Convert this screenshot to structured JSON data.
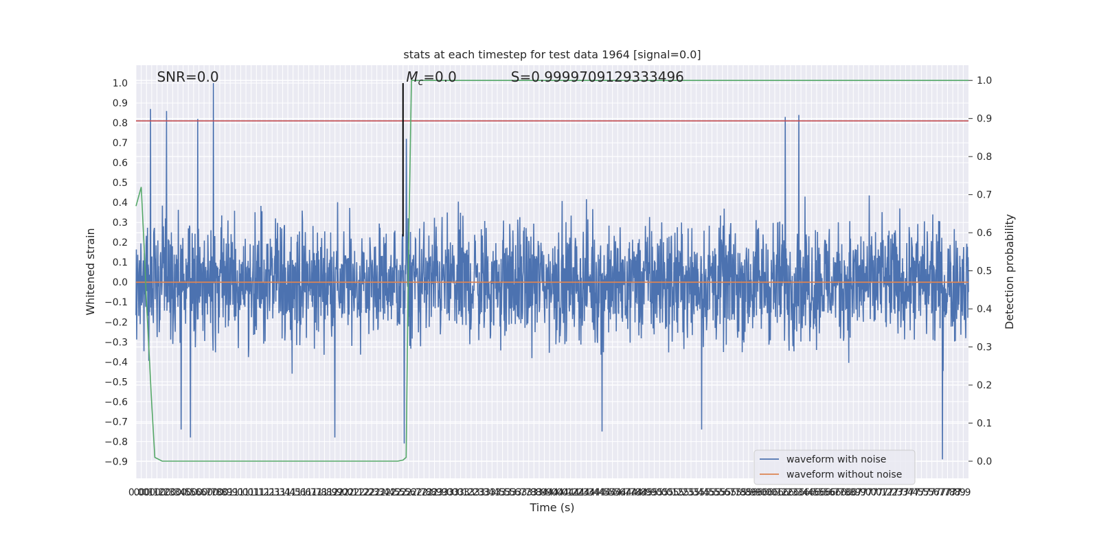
{
  "chart_data": {
    "type": "line",
    "title": "stats at each timestep for test data 1964 [signal=0.0]",
    "xlabel": "Time (s)",
    "ylabel": "Whitened strain",
    "y2label": "Detection probability",
    "xlim": [
      0.0,
      7.95
    ],
    "ylim": [
      -0.985,
      1.09
    ],
    "y2lim": [
      -0.045,
      1.04
    ],
    "x_ticks": [
      0.0,
      0.05,
      0.1,
      0.15,
      0.2,
      0.25,
      0.3,
      0.35,
      0.4,
      0.45,
      0.5,
      0.55,
      0.6,
      0.65,
      0.7,
      0.75,
      0.8,
      0.85,
      0.9,
      0.95,
      1.0,
      1.05,
      1.1,
      1.15,
      1.2,
      1.25,
      1.3,
      1.35,
      1.4,
      1.45,
      1.5,
      1.55,
      1.6,
      1.65,
      1.7,
      1.75,
      1.8,
      1.85,
      1.9,
      1.95,
      2.0,
      2.05,
      2.1,
      2.15,
      2.2,
      2.25,
      2.3,
      2.35,
      2.4,
      2.45,
      2.5,
      2.55,
      2.6,
      2.65,
      2.7,
      2.75,
      2.8,
      2.85,
      2.9,
      2.95,
      3.0,
      3.05,
      3.1,
      3.15,
      3.2,
      3.25,
      3.3,
      3.35,
      3.4,
      3.45,
      3.5,
      3.55,
      3.6,
      3.65,
      3.7,
      3.75,
      3.8,
      3.85,
      3.9,
      3.95,
      4.0,
      4.05,
      4.1,
      4.15,
      4.2,
      4.25,
      4.3,
      4.35,
      4.4,
      4.45,
      4.5,
      4.55,
      4.6,
      4.65,
      4.7,
      4.75,
      4.8,
      4.85,
      4.9,
      4.95,
      5.0,
      5.05,
      5.1,
      5.15,
      5.2,
      5.25,
      5.3,
      5.35,
      5.4,
      5.45,
      5.5,
      5.55,
      5.6,
      5.65,
      5.7,
      5.75,
      5.8,
      5.85,
      5.9,
      5.95,
      6.0,
      6.05,
      6.1,
      6.15,
      6.2,
      6.25,
      6.3,
      6.35,
      6.4,
      6.45,
      6.5,
      6.55,
      6.6,
      6.65,
      6.7,
      6.75,
      6.8,
      6.85,
      6.9,
      6.95,
      7.0,
      7.05,
      7.1,
      7.15,
      7.2,
      7.25,
      7.3,
      7.35,
      7.4,
      7.45,
      7.5,
      7.55,
      7.6,
      7.65,
      7.7,
      7.75,
      7.8,
      7.85,
      7.9
    ],
    "x_tick_labels": [
      "0.0",
      "0.0",
      "0.1",
      "0.1",
      "0.2",
      "0.2",
      "0.3",
      "0.3",
      "0.4",
      "0.5",
      "0.5",
      "0.6",
      "0.6",
      "0.7",
      "0.7",
      "0.8",
      "0.8",
      "0.9",
      "0.9",
      "1.0",
      "1.0",
      "1.0",
      "1.1",
      "1.1",
      "1.2",
      "1.2",
      "1.3",
      "1.3",
      "1.4",
      "1.4",
      "1.5",
      "1.6",
      "1.6",
      "1.7",
      "1.7",
      "1.8",
      "1.8",
      "1.9",
      "1.9",
      "2.0",
      "2.0",
      "2.1",
      "2.1",
      "2.2",
      "2.2",
      "2.3",
      "2.3",
      "2.4",
      "2.4",
      "2.5",
      "2.5",
      "2.5",
      "2.6",
      "2.7",
      "2.7",
      "2.8",
      "2.8",
      "2.9",
      "2.9",
      "3.0",
      "3.0",
      "3.0",
      "3.1",
      "3.2",
      "3.2",
      "3.3",
      "3.3",
      "3.4",
      "3.4",
      "3.5",
      "3.5",
      "3.5",
      "3.6",
      "3.7",
      "3.7",
      "3.8",
      "3.8",
      "3.9",
      "3.9",
      "4.0",
      "4.0",
      "4.0",
      "4.1",
      "4.2",
      "4.2",
      "4.3",
      "4.3",
      "4.4",
      "4.4",
      "4.5",
      "4.5",
      "4.5",
      "4.6",
      "4.7",
      "4.7",
      "4.8",
      "4.8",
      "4.9",
      "4.9",
      "5.0",
      "5.0",
      "5.0",
      "5.1",
      "5.2",
      "5.2",
      "5.3",
      "5.3",
      "5.4",
      "5.4",
      "5.5",
      "5.5",
      "5.5",
      "5.6",
      "5.7",
      "5.7",
      "5.8",
      "5.8",
      "5.9",
      "5.9",
      "6.0",
      "6.0",
      "6.0",
      "6.1",
      "6.2",
      "6.2",
      "6.3",
      "6.3",
      "6.4",
      "6.4",
      "6.5",
      "6.5",
      "6.5",
      "6.6",
      "6.7",
      "6.7",
      "6.8",
      "6.8",
      "6.9",
      "6.9",
      "7.0",
      "7.0",
      "7.0",
      "7.1",
      "7.2",
      "7.2",
      "7.3",
      "7.3",
      "7.4",
      "7.4",
      "7.5",
      "7.5",
      "7.5",
      "7.6",
      "7.7",
      "7.7",
      "7.8",
      "7.8",
      "7.9",
      "7.9"
    ],
    "y_ticks": [
      -0.9,
      -0.8,
      -0.7,
      -0.6,
      -0.5,
      -0.4,
      -0.3,
      -0.2,
      -0.1,
      0.0,
      0.1,
      0.2,
      0.3,
      0.4,
      0.5,
      0.6,
      0.7,
      0.8,
      0.9,
      1.0
    ],
    "y_tick_labels": [
      "−0.9",
      "−0.8",
      "−0.7",
      "−0.6",
      "−0.5",
      "−0.4",
      "−0.3",
      "−0.2",
      "−0.1",
      "0.0",
      "0.1",
      "0.2",
      "0.3",
      "0.4",
      "0.5",
      "0.6",
      "0.7",
      "0.8",
      "0.9",
      "1.0"
    ],
    "y2_ticks": [
      0.0,
      0.1,
      0.2,
      0.3,
      0.4,
      0.5,
      0.6,
      0.7,
      0.8,
      0.9,
      1.0
    ],
    "y2_tick_labels": [
      "0.0",
      "0.1",
      "0.2",
      "0.3",
      "0.4",
      "0.5",
      "0.6",
      "0.7",
      "0.8",
      "0.9",
      "1.0"
    ],
    "series": [
      {
        "name": "waveform with noise",
        "color": "#4c72b0",
        "axis": "left",
        "noise_envelope": {
          "x_start": 0.0,
          "x_end": 7.95,
          "samples": 2400,
          "typical_amplitude": 0.32,
          "spikes": [
            [
              0.14,
              0.87
            ],
            [
              0.29,
              0.86
            ],
            [
              0.59,
              0.82
            ],
            [
              0.74,
              1.0
            ],
            [
              2.56,
              -0.81
            ],
            [
              2.58,
              0.72
            ],
            [
              6.2,
              0.83
            ],
            [
              6.33,
              0.84
            ],
            [
              7.7,
              -0.89
            ],
            [
              1.9,
              -0.78
            ],
            [
              0.43,
              -0.74
            ],
            [
              0.52,
              -0.78
            ],
            [
              4.45,
              -0.75
            ],
            [
              5.4,
              -0.74
            ]
          ]
        }
      },
      {
        "name": "waveform without noise",
        "color": "#dd8452",
        "axis": "left",
        "x": [
          0.0,
          7.95
        ],
        "y": [
          0.0,
          0.0
        ]
      },
      {
        "name": "",
        "color": "#55a868",
        "axis": "right",
        "x": [
          0.0,
          0.03,
          0.05,
          0.08,
          0.1,
          0.15,
          0.18,
          0.25,
          0.5,
          1.0,
          1.5,
          2.0,
          2.5,
          2.55,
          2.58,
          2.6,
          2.63,
          2.7,
          3.0,
          7.95
        ],
        "y": [
          0.67,
          0.7,
          0.72,
          0.55,
          0.42,
          0.15,
          0.01,
          0.0,
          0.0,
          0.0,
          0.0,
          0.0,
          0.0,
          0.003,
          0.01,
          0.5,
          1.0,
          1.0,
          1.0,
          1.0
        ]
      }
    ],
    "hlines": [
      {
        "y": 0.81,
        "axis": "left",
        "color": "#c44e52"
      }
    ],
    "vlines": [
      {
        "x": 2.55,
        "color": "#000000",
        "y_from": 0.23,
        "y_to": 1.0
      }
    ],
    "annotations": [
      {
        "text": "SNR=0.0",
        "x": 0.2,
        "y": 1.0
      },
      {
        "text_math": "M",
        "sub": "c",
        "suffix": "=0.0",
        "x": 2.58,
        "y": 1.0
      },
      {
        "text": "S=0.9999709129333496",
        "x": 3.58,
        "y": 1.0
      }
    ],
    "grid": true,
    "legend_placement": "lower-right"
  }
}
